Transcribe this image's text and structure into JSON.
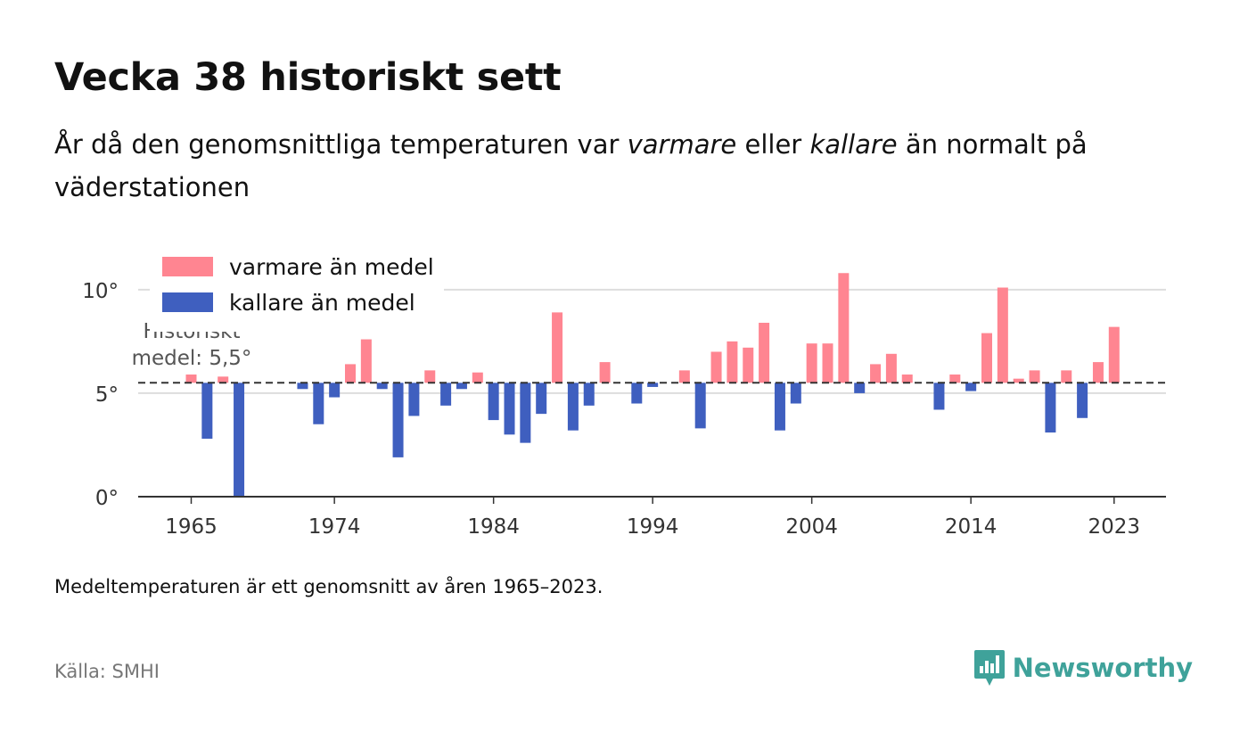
{
  "title": "Vecka 38 historiskt sett",
  "subtitle": {
    "part1": "År då den genomsnittliga temperaturen var ",
    "warm": "varmare",
    "part2": " eller ",
    "cold": "kallare",
    "part3": " än normalt på väderstationen"
  },
  "note": "Medeltemperaturen är ett genomsnitt av åren 1965–2023.",
  "source": "Källa: SMHI",
  "brand": {
    "name": "Newsworthy",
    "color": "#3fa29a"
  },
  "chart_data": {
    "type": "bar",
    "mean": 5.5,
    "mean_label_line1": "Historiskt",
    "mean_label_line2": "medel: 5,5°",
    "ylim": [
      0,
      11.5
    ],
    "yticks": [
      0,
      5,
      10
    ],
    "ytick_labels": [
      "0°",
      "5°",
      "10°"
    ],
    "xticks": [
      1965,
      1974,
      1984,
      1994,
      2004,
      2014,
      2023
    ],
    "grid": true,
    "legend_position": "top-left",
    "legend": [
      {
        "label": "varmare än medel",
        "color": "#ff8591"
      },
      {
        "label": "kallare än medel",
        "color": "#3f5fbf"
      }
    ],
    "colors": {
      "warm": "#ff8591",
      "cold": "#3f5fbf"
    },
    "x": [
      1965,
      1966,
      1967,
      1968,
      1969,
      1970,
      1971,
      1972,
      1973,
      1974,
      1975,
      1976,
      1977,
      1978,
      1979,
      1980,
      1981,
      1982,
      1983,
      1984,
      1985,
      1986,
      1987,
      1988,
      1989,
      1990,
      1991,
      1992,
      1993,
      1994,
      1995,
      1996,
      1997,
      1998,
      1999,
      2000,
      2001,
      2002,
      2003,
      2004,
      2005,
      2006,
      2007,
      2008,
      2009,
      2010,
      2011,
      2012,
      2013,
      2014,
      2015,
      2016,
      2017,
      2018,
      2019,
      2020,
      2021,
      2022,
      2023
    ],
    "values": [
      5.9,
      2.8,
      5.8,
      0.0,
      null,
      null,
      null,
      5.2,
      3.5,
      4.8,
      6.4,
      7.6,
      5.2,
      1.9,
      3.9,
      6.1,
      4.4,
      5.2,
      6.0,
      3.7,
      3.0,
      2.6,
      4.0,
      8.9,
      3.2,
      4.4,
      6.5,
      null,
      4.5,
      5.3,
      null,
      6.1,
      3.3,
      7.0,
      7.5,
      7.2,
      8.4,
      3.2,
      4.5,
      7.4,
      7.4,
      10.8,
      5.0,
      6.4,
      6.9,
      5.9,
      null,
      4.2,
      5.9,
      5.1,
      7.9,
      10.1,
      5.7,
      6.1,
      3.1,
      6.1,
      3.8,
      6.5,
      8.2
    ]
  }
}
